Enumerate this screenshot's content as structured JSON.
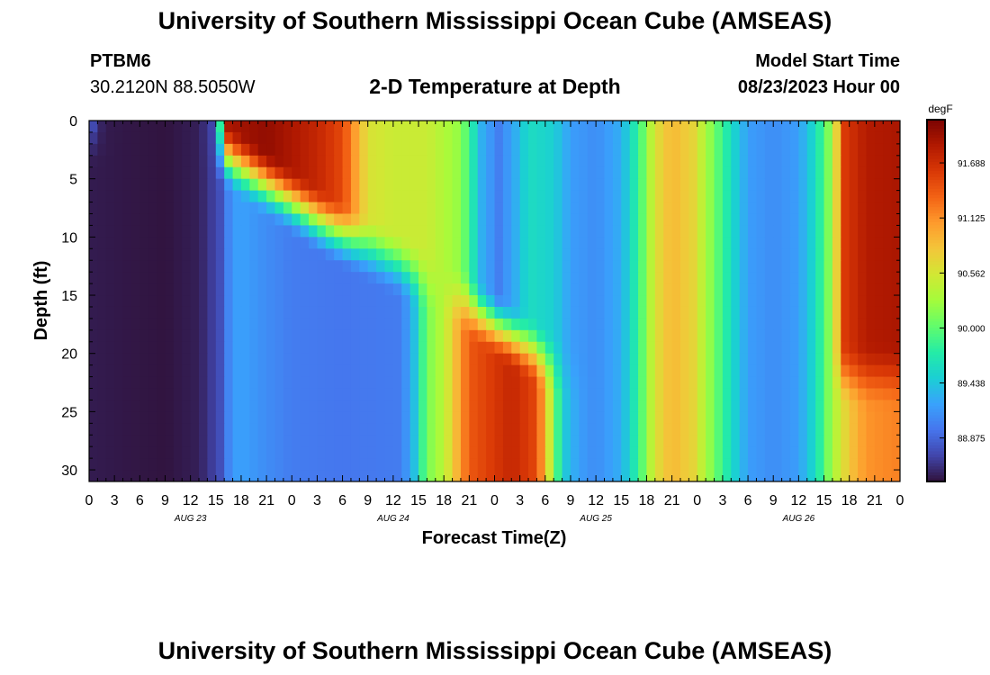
{
  "header": {
    "title": "University of Southern Mississippi Ocean Cube (AMSEAS)",
    "station": "PTBM6",
    "coords": "30.2120N  88.5050W",
    "plot_title": "2-D Temperature at Depth",
    "model_start_label": "Model Start Time",
    "model_start_value": "08/23/2023 Hour 00"
  },
  "footer": {
    "title": "University of Southern Mississippi Ocean Cube (AMSEAS)"
  },
  "colors": {
    "palette": [
      "#30123b",
      "#4145ab",
      "#4675ed",
      "#39a2fc",
      "#1bcfd4",
      "#24eca6",
      "#61fc6c",
      "#a4fc3b",
      "#d1e834",
      "#f3c63a",
      "#fe9b2d",
      "#f36315",
      "#d93806",
      "#b11901",
      "#7a0402"
    ]
  },
  "chart_data": {
    "type": "heatmap",
    "title": "2-D Temperature at Depth",
    "xlabel": "Forecast Time(Z)",
    "ylabel": "Depth (ft)",
    "ylim": [
      0,
      31
    ],
    "y_ticks": [
      0,
      5,
      10,
      15,
      20,
      25,
      30
    ],
    "x_range_hours": [
      0,
      96
    ],
    "x_tick_step_hours": 3,
    "x_tick_labels": [
      "0",
      "3",
      "6",
      "9",
      "12",
      "15",
      "18",
      "21",
      "0",
      "3",
      "6",
      "9",
      "12",
      "15",
      "18",
      "21",
      "0",
      "3",
      "6",
      "9",
      "12",
      "15",
      "18",
      "21",
      "0",
      "3",
      "6",
      "9",
      "12",
      "15",
      "18",
      "21",
      "0"
    ],
    "day_labels": [
      {
        "label": "AUG 23",
        "hour": 12
      },
      {
        "label": "AUG 24",
        "hour": 36
      },
      {
        "label": "AUG 25",
        "hour": 60
      },
      {
        "label": "AUG 26",
        "hour": 84
      }
    ],
    "colorbar": {
      "unit": "degF",
      "vmin": 88.43,
      "vmax": 92.13,
      "ticks": [
        "91.688",
        "91.125",
        "90.562",
        "90.000",
        "89.438",
        "88.875"
      ]
    },
    "surface_profile_degF": [
      [
        0,
        89.1
      ],
      [
        1,
        88.6
      ],
      [
        2,
        88.48
      ],
      [
        4,
        88.46
      ],
      [
        9,
        88.44
      ],
      [
        13,
        88.5
      ],
      [
        15,
        88.75
      ],
      [
        16.5,
        91.9
      ],
      [
        21,
        92.02
      ],
      [
        27,
        91.75
      ],
      [
        30,
        91.5
      ],
      [
        33,
        90.6
      ],
      [
        36,
        90.5
      ],
      [
        40,
        90.5
      ],
      [
        44,
        90.2
      ],
      [
        46.5,
        89.3
      ],
      [
        48.5,
        89.02
      ],
      [
        50.5,
        89.3
      ],
      [
        52,
        89.6
      ],
      [
        55,
        89.5
      ],
      [
        57,
        89.2
      ],
      [
        60,
        89.1
      ],
      [
        63,
        89.3
      ],
      [
        65,
        89.8
      ],
      [
        67,
        90.6
      ],
      [
        69,
        90.9
      ],
      [
        71.5,
        90.7
      ],
      [
        73.5,
        90.2
      ],
      [
        76,
        89.6
      ],
      [
        78,
        89.2
      ],
      [
        81,
        89.1
      ],
      [
        84,
        89.2
      ],
      [
        86,
        89.6
      ],
      [
        88,
        90.3
      ],
      [
        89.5,
        91.6
      ],
      [
        92,
        91.85
      ],
      [
        96,
        91.9
      ]
    ],
    "deep_profile_degF": [
      [
        0,
        88.48
      ],
      [
        4,
        88.46
      ],
      [
        9,
        88.44
      ],
      [
        13,
        88.5
      ],
      [
        15.5,
        88.75
      ],
      [
        17,
        89.2
      ],
      [
        18.5,
        89.2
      ],
      [
        21,
        89.1
      ],
      [
        24,
        89.0
      ],
      [
        30,
        88.97
      ],
      [
        37,
        89.0
      ],
      [
        38.5,
        89.4
      ],
      [
        40,
        90.1
      ],
      [
        42,
        90.4
      ],
      [
        45,
        91.4
      ],
      [
        50,
        91.75
      ],
      [
        53,
        91.5
      ],
      [
        55,
        90.2
      ],
      [
        56,
        89.5
      ],
      [
        58,
        89.2
      ],
      [
        60,
        89.1
      ],
      [
        63,
        89.3
      ],
      [
        65,
        89.8
      ],
      [
        67,
        90.6
      ],
      [
        69,
        90.9
      ],
      [
        71.5,
        90.7
      ],
      [
        73.5,
        90.2
      ],
      [
        76,
        89.6
      ],
      [
        78,
        89.2
      ],
      [
        81,
        89.1
      ],
      [
        84,
        89.2
      ],
      [
        86,
        89.6
      ],
      [
        88,
        90.3
      ],
      [
        90,
        90.8
      ],
      [
        92,
        91.1
      ],
      [
        96,
        91.2
      ]
    ]
  }
}
